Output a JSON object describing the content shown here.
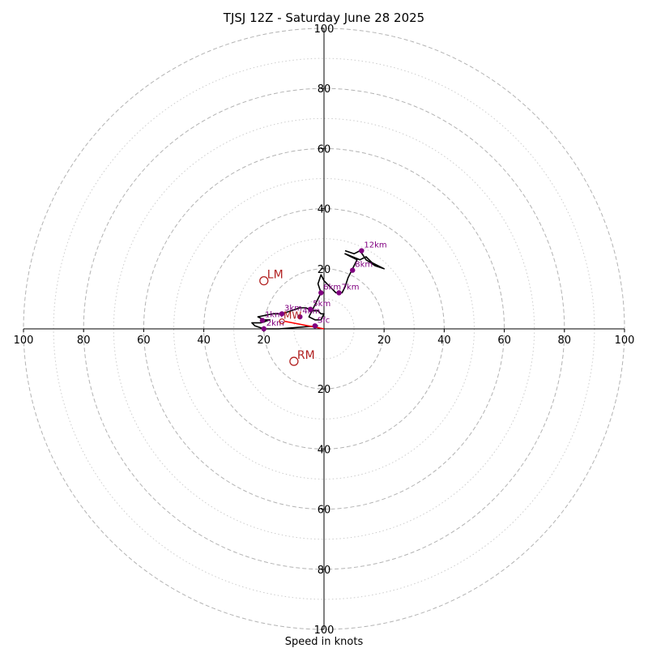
{
  "chart_data": {
    "type": "scatter",
    "title": "TJSJ 12Z - Saturday June 28 2025",
    "xlabel": "Speed in knots",
    "ylabel": "",
    "xlim": [
      -100,
      100
    ],
    "ylim": [
      -100,
      100
    ],
    "grid": true,
    "rings_major": [
      20,
      40,
      60,
      80,
      100
    ],
    "rings_minor": [
      10,
      30,
      50,
      70,
      90
    ],
    "x_tick_labels": [
      "100",
      "80",
      "60",
      "40",
      "20",
      "20",
      "40",
      "60",
      "80",
      "100"
    ],
    "y_tick_labels": [
      "100",
      "80",
      "60",
      "40",
      "20",
      "20",
      "40",
      "60",
      "80",
      "100"
    ],
    "tick_values": [
      -100,
      -80,
      -60,
      -40,
      -20,
      20,
      40,
      60,
      80,
      100
    ],
    "hodograph_trace": [
      [
        -2,
        1
      ],
      [
        -15,
        0
      ],
      [
        -20,
        0
      ],
      [
        -23,
        1
      ],
      [
        -24,
        2
      ],
      [
        -21,
        2
      ],
      [
        -18,
        3
      ],
      [
        -20,
        3
      ],
      [
        -22,
        4
      ],
      [
        -17,
        5
      ],
      [
        -14,
        5
      ],
      [
        -11,
        6
      ],
      [
        -8,
        7
      ],
      [
        -6,
        7
      ],
      [
        -4,
        6
      ],
      [
        -2,
        6
      ],
      [
        -1,
        5
      ],
      [
        0,
        5
      ],
      [
        -1,
        3
      ],
      [
        -3,
        3
      ],
      [
        -5,
        4
      ],
      [
        -4,
        6
      ],
      [
        -3,
        8
      ],
      [
        -2,
        10
      ],
      [
        -1,
        12
      ],
      [
        -2,
        15
      ],
      [
        -1,
        18
      ],
      [
        0,
        16
      ],
      [
        2,
        14
      ],
      [
        3,
        13
      ],
      [
        4,
        12
      ],
      [
        6,
        12
      ],
      [
        7,
        14
      ],
      [
        8,
        17
      ],
      [
        9,
        19
      ],
      [
        10,
        21
      ],
      [
        11,
        23
      ],
      [
        9,
        24
      ],
      [
        7,
        25
      ],
      [
        12,
        23
      ],
      [
        14,
        24
      ],
      [
        16,
        22
      ],
      [
        20,
        20
      ],
      [
        17,
        21
      ],
      [
        14,
        23
      ],
      [
        12,
        26
      ],
      [
        10,
        25
      ],
      [
        7,
        26
      ]
    ],
    "height_points": [
      {
        "label": "Sfc",
        "x": -3,
        "y": 1
      },
      {
        "label": "1km",
        "x": -20.5,
        "y": 2.8
      },
      {
        "label": "2km",
        "x": -20,
        "y": 0
      },
      {
        "label": "3km",
        "x": -14,
        "y": 5
      },
      {
        "label": "4km",
        "x": -8,
        "y": 4
      },
      {
        "label": "5km",
        "x": -4.5,
        "y": 6.5
      },
      {
        "label": "6km",
        "x": -1,
        "y": 12
      },
      {
        "label": "7km",
        "x": 5,
        "y": 12
      },
      {
        "label": "8km",
        "x": 9.5,
        "y": 19.5
      },
      {
        "label": "12km",
        "x": 12.5,
        "y": 26
      }
    ],
    "storm_motion": [
      {
        "label": "LM",
        "x": -20,
        "y": 16
      },
      {
        "label": "RM",
        "x": -10,
        "y": -10.8
      }
    ],
    "mean_wind": {
      "label": "MW",
      "x": -14,
      "y": 2.5
    },
    "shear_vector": {
      "from": [
        0,
        0
      ],
      "to": [
        -13,
        2.5
      ]
    },
    "colors": {
      "trace": "#000000",
      "height_points": "#800080",
      "storm_motion": "#b22222",
      "shear": "#ff0000",
      "grid": "#b3b3b3"
    }
  }
}
